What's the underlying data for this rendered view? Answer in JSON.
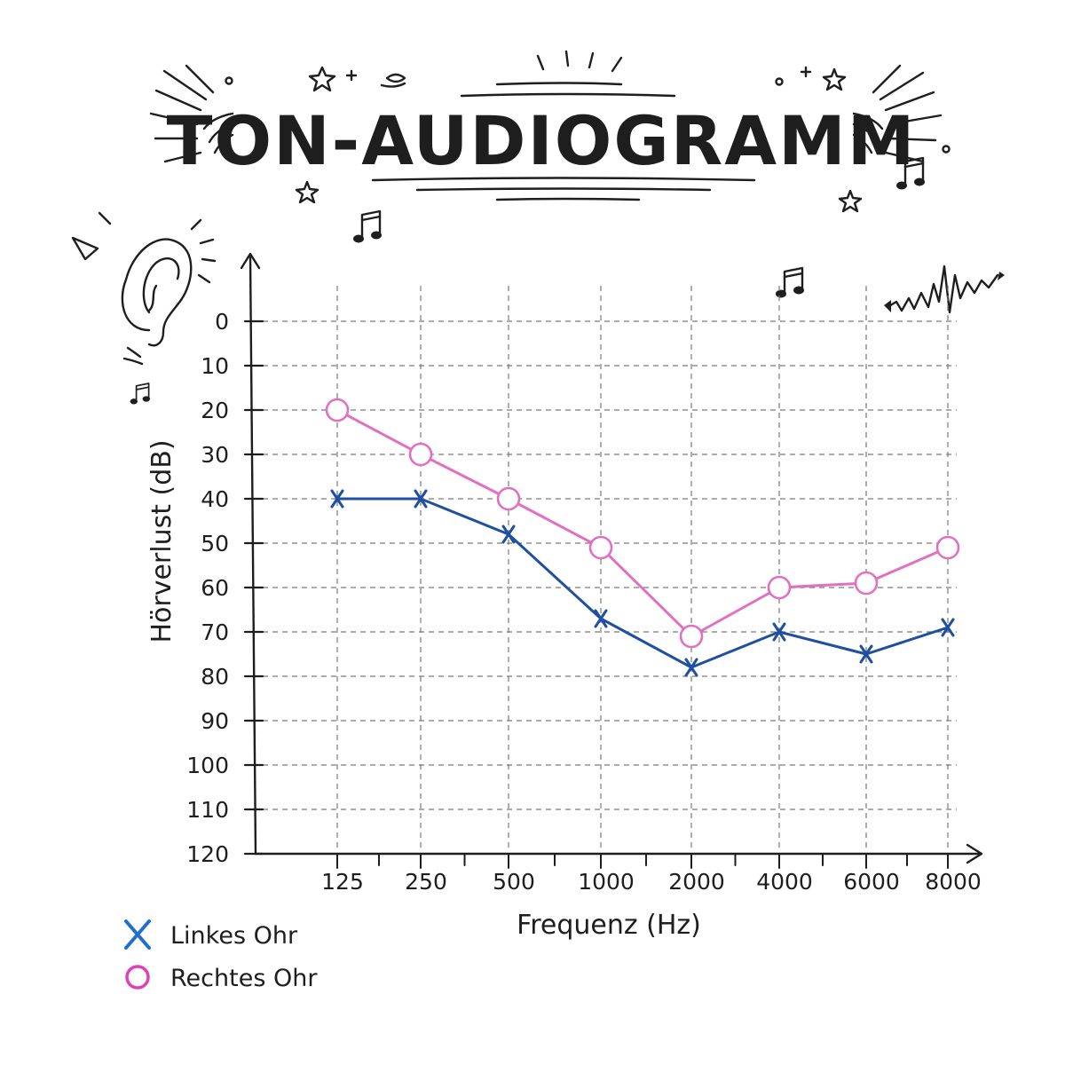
{
  "chart_data": {
    "type": "line",
    "title": "TON-AUDIOGRAMM",
    "xlabel": "Frequenz (Hz)",
    "ylabel": "Hörverlust (dB)",
    "categories": [
      "125",
      "250",
      "500",
      "1000",
      "2000",
      "4000",
      "6000",
      "8000"
    ],
    "y_ticks": [
      "0",
      "10",
      "20",
      "30",
      "40",
      "50",
      "60",
      "70",
      "80",
      "90",
      "100",
      "110",
      "120"
    ],
    "ylim": [
      0,
      120
    ],
    "y_inverted": true,
    "grid": true,
    "legend_position": "bottom-left",
    "series": [
      {
        "name": "Linkes Ohr",
        "marker": "x",
        "color": "#1f4fa0",
        "values": [
          40,
          40,
          48,
          67,
          78,
          70,
          75,
          69
        ]
      },
      {
        "name": "Rechtes Ohr",
        "marker": "o",
        "color": "#e070c0",
        "values": [
          20,
          30,
          40,
          51,
          71,
          60,
          59,
          51
        ]
      }
    ]
  },
  "icons": [
    "ear-icon",
    "music-note-icon",
    "star-icon",
    "sound-wave-icon",
    "sparkle-icon"
  ],
  "colors": {
    "ink": "#1e1e1e",
    "left_ear": "#1f4fa0",
    "right_ear": "#e070c0",
    "grid": "#7a7a7a"
  }
}
